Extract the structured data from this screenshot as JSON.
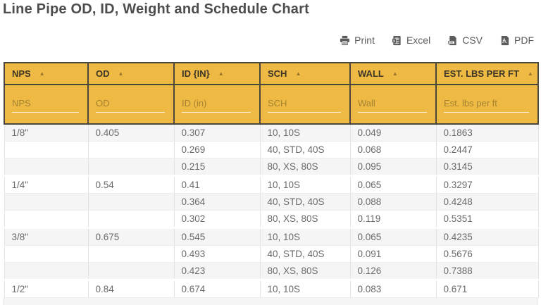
{
  "page": {
    "title": "Line Pipe OD, ID, Weight and Schedule Chart"
  },
  "toolbar": {
    "buttons": [
      {
        "label": "Print",
        "icon": "printer-icon"
      },
      {
        "label": "Excel",
        "icon": "excel-icon"
      },
      {
        "label": "CSV",
        "icon": "csv-icon"
      },
      {
        "label": "PDF",
        "icon": "pdf-icon"
      }
    ]
  },
  "table": {
    "sort_indicator": "▲",
    "columns": [
      {
        "label": "NPS",
        "filter_placeholder": "NPS"
      },
      {
        "label": "OD",
        "filter_placeholder": "OD"
      },
      {
        "label": "ID {IN}",
        "filter_placeholder": "ID (in)"
      },
      {
        "label": "SCH",
        "filter_placeholder": "SCH"
      },
      {
        "label": "WALL",
        "filter_placeholder": "Wall"
      },
      {
        "label": "EST. LBS PER FT",
        "filter_placeholder": "Est. lbs per ft"
      }
    ],
    "rows": [
      {
        "cells": [
          "1/8\"",
          "0.405",
          "0.307",
          "10, 10S",
          "0.049",
          "0.1863"
        ],
        "group_end": false
      },
      {
        "cells": [
          "",
          "",
          "0.269",
          "40, STD, 40S",
          "0.068",
          "0.2447"
        ],
        "group_end": false
      },
      {
        "cells": [
          "",
          "",
          "0.215",
          "80, XS, 80S",
          "0.095",
          "0.3145"
        ],
        "group_end": true
      },
      {
        "cells": [
          "1/4\"",
          "0.54",
          "0.41",
          "10, 10S",
          "0.065",
          "0.3297"
        ],
        "group_end": false
      },
      {
        "cells": [
          "",
          "",
          "0.364",
          "40, STD, 40S",
          "0.088",
          "0.4248"
        ],
        "group_end": false
      },
      {
        "cells": [
          "",
          "",
          "0.302",
          "80, XS, 80S",
          "0.119",
          "0.5351"
        ],
        "group_end": true
      },
      {
        "cells": [
          "3/8\"",
          "0.675",
          "0.545",
          "10, 10S",
          "0.065",
          "0.4235"
        ],
        "group_end": false
      },
      {
        "cells": [
          "",
          "",
          "0.493",
          "40, STD, 40S",
          "0.091",
          "0.5676"
        ],
        "group_end": false
      },
      {
        "cells": [
          "",
          "",
          "0.423",
          "80, XS, 80S",
          "0.126",
          "0.7388"
        ],
        "group_end": true
      },
      {
        "cells": [
          "1/2\"",
          "0.84",
          "0.674",
          "10, 10S",
          "0.083",
          "0.671"
        ],
        "group_end": false
      }
    ]
  },
  "colors": {
    "accent_yellow": "#eeba44",
    "header_border": "#4a473f",
    "header_text": "#3d3526",
    "sort_arrow": "#97742c",
    "title_text": "#4d4d4d",
    "body_text": "#6a6a6a",
    "row_stripe": "#f5f5f5"
  }
}
